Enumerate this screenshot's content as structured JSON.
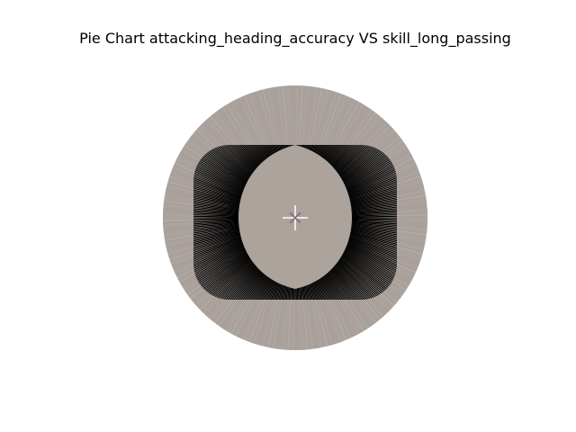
{
  "chart_data": {
    "type": "pie",
    "title": "Pie Chart attacking_heading_accuracy VS skill_long_passing",
    "legend": "none",
    "slice_labels": "none",
    "slices": {
      "count": 420,
      "note_free": true,
      "dominant_color": "#aba39c",
      "palette": [
        "#a9a39d",
        "#b0a49e",
        "#a59f9a",
        "#b3a8a1",
        "#aba19b",
        "#a6a3a0",
        "#b1a29a",
        "#a8a29f",
        "#ae9f98",
        "#a4a19d"
      ]
    },
    "edge_color": "#000000",
    "inner_ring_radius_fraction": 0.78
  }
}
